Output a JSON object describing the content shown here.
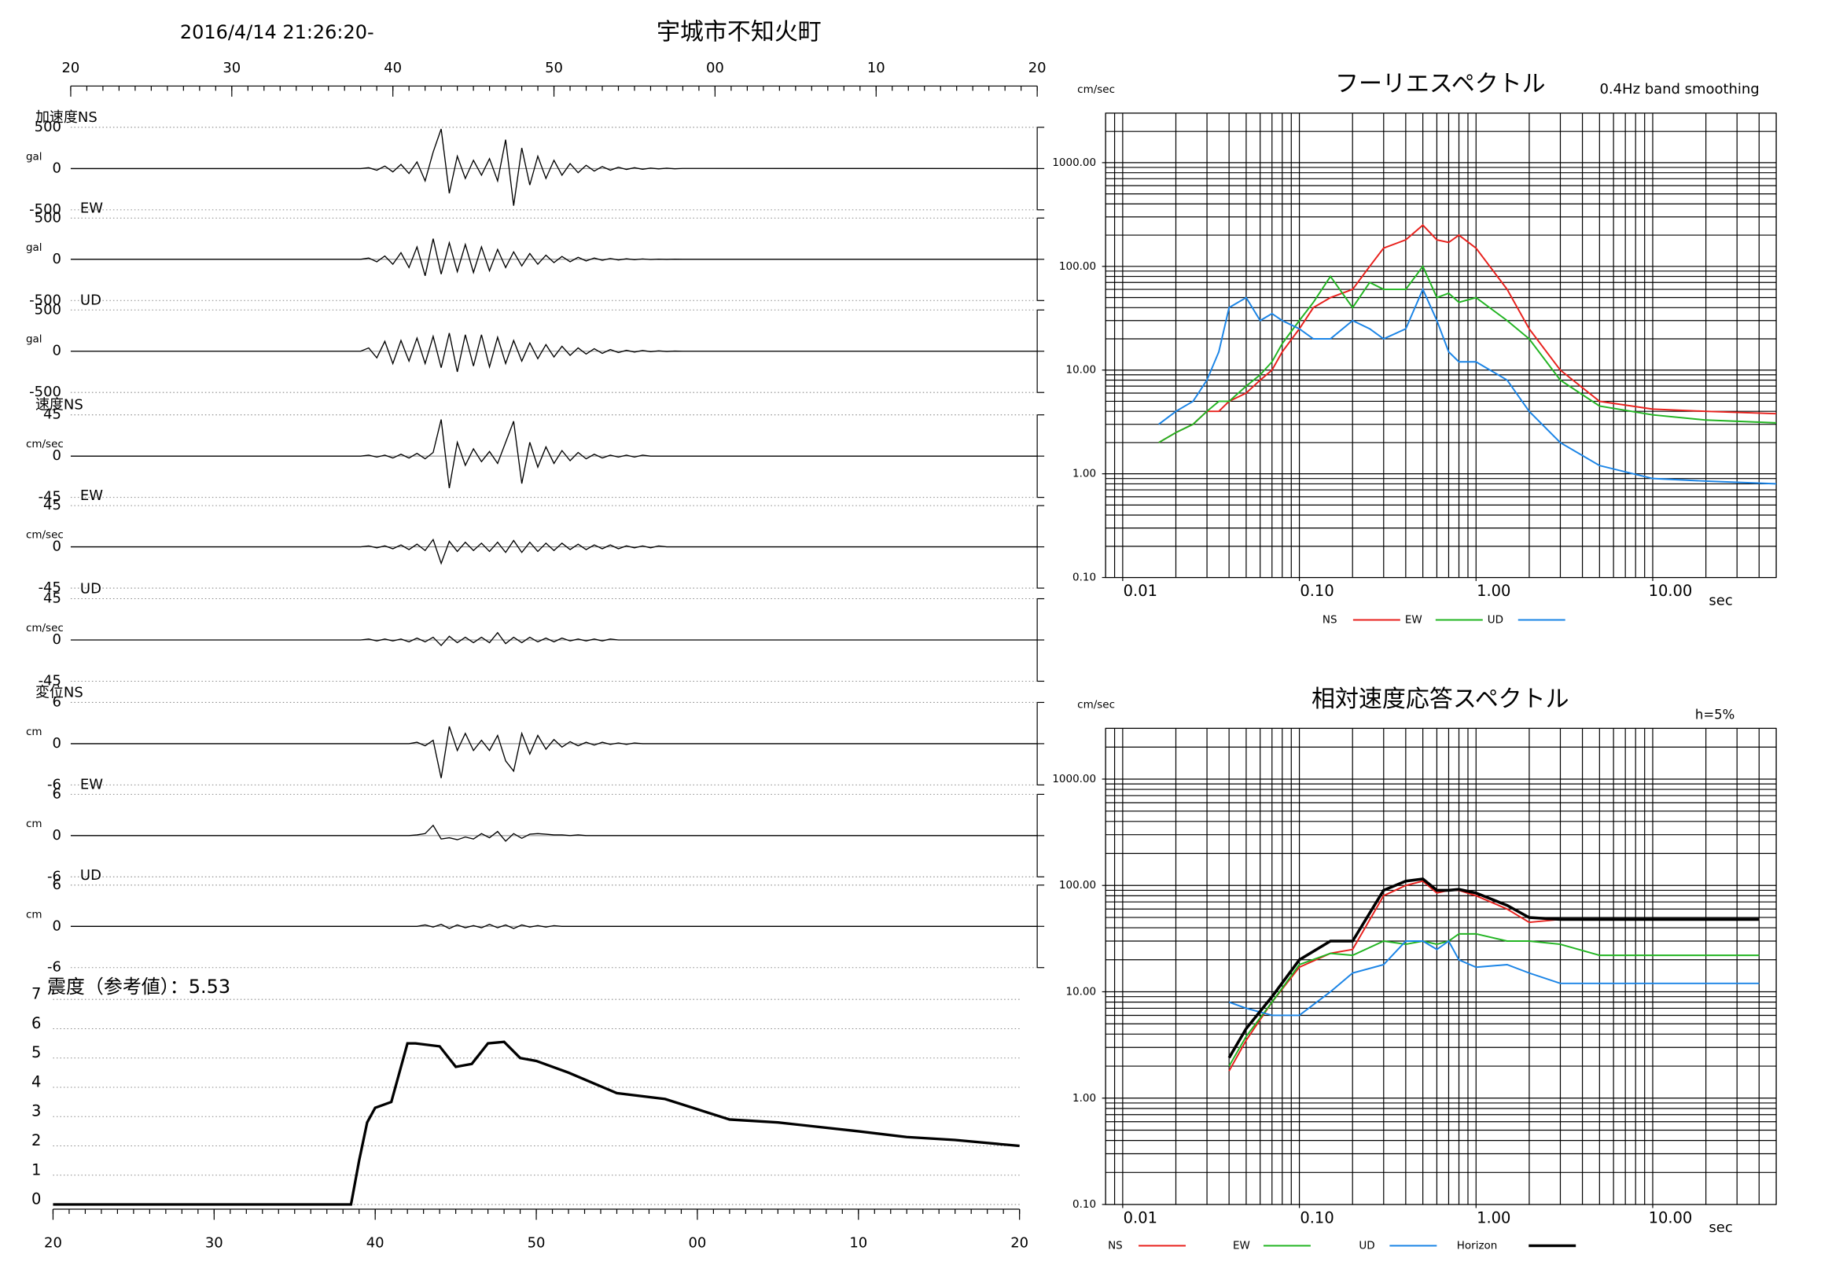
{
  "chart_data": [
    {
      "type": "waveform",
      "title": "宇城市不知火町",
      "subtitle": "2016/4/14 21:26:20-",
      "xlim": [
        20,
        80
      ],
      "xticks": [
        20,
        30,
        40,
        50,
        {
          "value": 60,
          "label": "00"
        },
        {
          "value": 70,
          "label": "10"
        },
        {
          "value": 80,
          "label": "20"
        }
      ],
      "x": [
        20,
        38,
        38.5,
        39,
        39.5,
        40,
        40.5,
        41,
        41.5,
        42,
        42.5,
        43,
        43.5,
        44,
        44.5,
        45,
        45.5,
        46,
        46.5,
        47,
        47.5,
        48,
        48.5,
        49,
        49.5,
        50,
        50.5,
        51,
        51.5,
        52,
        52.5,
        53,
        53.5,
        54,
        54.5,
        55,
        55.5,
        56,
        56.5,
        57,
        57.5,
        58,
        80
      ],
      "series": [
        {
          "name": "加速度NS",
          "unit": "gal",
          "color": "#000000",
          "ylim": [
            -500,
            500
          ],
          "yticks": [
            500,
            0,
            -500
          ],
          "values": [
            0,
            0,
            10,
            -20,
            30,
            -40,
            50,
            -60,
            80,
            -150,
            200,
            480,
            -300,
            150,
            -120,
            100,
            -80,
            120,
            -150,
            350,
            -450,
            250,
            -200,
            150,
            -120,
            100,
            -80,
            60,
            -50,
            40,
            -30,
            25,
            -20,
            15,
            -12,
            10,
            -8,
            6,
            -5,
            4,
            -3,
            2,
            0
          ]
        },
        {
          "name": "EW",
          "unit": "gal",
          "color": "#000000",
          "ylim": [
            -500,
            500
          ],
          "yticks": [
            500,
            0,
            -500
          ],
          "values": [
            0,
            0,
            15,
            -30,
            40,
            -60,
            80,
            -100,
            150,
            -200,
            250,
            -180,
            200,
            -150,
            180,
            -160,
            150,
            -140,
            120,
            -100,
            90,
            -80,
            70,
            -60,
            50,
            -40,
            35,
            -30,
            25,
            -20,
            15,
            -12,
            10,
            -8,
            6,
            -5,
            4,
            -3,
            2,
            -2,
            1,
            0,
            0
          ]
        },
        {
          "name": "UD",
          "unit": "gal",
          "color": "#000000",
          "ylim": [
            -500,
            500
          ],
          "yticks": [
            500,
            0,
            -500
          ],
          "values": [
            0,
            0,
            40,
            -80,
            120,
            -150,
            130,
            -120,
            160,
            -150,
            180,
            -200,
            220,
            -250,
            200,
            -180,
            200,
            -190,
            170,
            -150,
            130,
            -120,
            100,
            -90,
            80,
            -70,
            60,
            -50,
            40,
            -35,
            30,
            -25,
            20,
            -15,
            12,
            -10,
            8,
            -6,
            4,
            -3,
            2,
            0,
            0
          ]
        },
        {
          "name": "速度NS",
          "unit": "cm/sec",
          "color": "#000000",
          "ylim": [
            -45,
            45
          ],
          "yticks": [
            45,
            0,
            -45
          ],
          "values": [
            0,
            0,
            1,
            -1,
            1,
            -2,
            2,
            -2,
            3,
            -3,
            4,
            40,
            -35,
            15,
            -10,
            8,
            -6,
            5,
            -8,
            15,
            38,
            -30,
            15,
            -12,
            10,
            -8,
            6,
            -5,
            4,
            -3,
            2,
            -2,
            1,
            -1,
            1,
            -1,
            1,
            0,
            0,
            0,
            0,
            0,
            0
          ]
        },
        {
          "name": "EW",
          "unit": "cm/sec",
          "color": "#000000",
          "ylim": [
            -45,
            45
          ],
          "yticks": [
            45,
            0,
            -45
          ],
          "values": [
            0,
            0,
            1,
            -1,
            1,
            -2,
            2,
            -3,
            3,
            -4,
            8,
            -18,
            6,
            -5,
            5,
            -4,
            4,
            -5,
            5,
            -6,
            7,
            -6,
            5,
            -5,
            4,
            -4,
            4,
            -3,
            3,
            -3,
            2,
            -2,
            2,
            -2,
            1,
            -1,
            1,
            -1,
            1,
            0,
            0,
            0,
            0
          ]
        },
        {
          "name": "UD",
          "unit": "cm/sec",
          "color": "#000000",
          "ylim": [
            -45,
            45
          ],
          "yticks": [
            45,
            0,
            -45
          ],
          "values": [
            0,
            0,
            1,
            -1,
            1,
            -1,
            1,
            -2,
            2,
            -2,
            3,
            -6,
            4,
            -3,
            3,
            -3,
            3,
            -3,
            8,
            -4,
            3,
            -3,
            3,
            -2,
            2,
            -2,
            2,
            -1,
            1,
            -1,
            1,
            -1,
            1,
            0,
            0,
            0,
            0,
            0,
            0,
            0,
            0,
            0,
            0
          ]
        },
        {
          "name": "変位NS",
          "unit": "cm",
          "color": "#000000",
          "ylim": [
            -6,
            6
          ],
          "yticks": [
            6,
            0,
            -6
          ],
          "values": [
            0,
            0,
            0,
            0,
            0,
            0,
            0,
            0,
            0.2,
            -0.3,
            0.5,
            -5,
            2.5,
            -1,
            1.5,
            -1,
            0.5,
            -1,
            1.2,
            -2.5,
            -4,
            1.5,
            -1.5,
            1.2,
            -0.8,
            0.6,
            -0.5,
            0.3,
            -0.3,
            0.2,
            -0.2,
            0.2,
            -0.1,
            0.1,
            -0.1,
            0.1,
            0,
            0,
            0,
            0,
            0,
            0,
            0
          ]
        },
        {
          "name": "EW",
          "unit": "cm",
          "color": "#000000",
          "ylim": [
            -6,
            6
          ],
          "yticks": [
            6,
            0,
            -6
          ],
          "values": [
            0,
            0,
            0,
            0,
            0,
            0,
            0,
            0,
            0.1,
            0.3,
            1.5,
            -0.5,
            -0.3,
            -0.6,
            -0.2,
            -0.5,
            0.3,
            -0.3,
            0.6,
            -0.8,
            0.3,
            -0.4,
            0.2,
            0.3,
            0.2,
            0.1,
            0.1,
            0,
            0.1,
            0,
            0,
            0,
            0,
            0,
            0,
            0,
            0,
            0,
            0,
            0,
            0,
            0,
            0
          ]
        },
        {
          "name": "UD",
          "unit": "cm",
          "color": "#000000",
          "ylim": [
            -6,
            6
          ],
          "yticks": [
            6,
            0,
            -6
          ],
          "values": [
            0,
            0,
            0,
            0,
            0,
            0,
            0,
            0,
            0,
            0.2,
            -0.1,
            0.3,
            -0.3,
            0.2,
            -0.2,
            0.1,
            -0.2,
            0.3,
            -0.2,
            0.2,
            -0.3,
            0.2,
            -0.1,
            0.1,
            -0.1,
            0.1,
            0,
            0,
            0,
            0,
            0,
            0,
            0,
            0,
            0,
            0,
            0,
            0,
            0,
            0,
            0,
            0,
            0
          ]
        }
      ]
    },
    {
      "type": "line",
      "title": "震度（参考値）：5.53",
      "xlim": [
        20,
        80
      ],
      "xticks": [
        20,
        30,
        40,
        50,
        {
          "value": 60,
          "label": "00"
        },
        {
          "value": 70,
          "label": "10"
        },
        {
          "value": 80,
          "label": "20"
        }
      ],
      "ylim": [
        0,
        7
      ],
      "yticks": [
        0,
        1,
        2,
        3,
        4,
        5,
        6,
        7
      ],
      "grid": true,
      "x": [
        20,
        38.5,
        39,
        39.5,
        40,
        41,
        42,
        42.5,
        44,
        45,
        46,
        47,
        48,
        49,
        50,
        52,
        55,
        58,
        62,
        65,
        70,
        73,
        76,
        80
      ],
      "series": [
        {
          "color": "#000000",
          "values": [
            0,
            0,
            1.5,
            2.8,
            3.3,
            3.5,
            5.5,
            5.5,
            5.4,
            4.7,
            4.8,
            5.5,
            5.55,
            5.0,
            4.9,
            4.5,
            3.8,
            3.6,
            2.9,
            2.8,
            2.5,
            2.3,
            2.2,
            2.0
          ]
        }
      ]
    },
    {
      "type": "line",
      "title": "フーリエスペクトル",
      "subtitle": "0.4Hz band smoothing",
      "y_label": "cm/sec",
      "x_label": "sec",
      "log_x": true,
      "log_y": true,
      "grid": true,
      "xlim": [
        0.008,
        50
      ],
      "xticks": [
        0.01,
        {
          "value": 0.1,
          "label": "0.10"
        },
        {
          "value": 1,
          "label": "1.00"
        },
        {
          "value": 10,
          "label": "10.00"
        }
      ],
      "ylim": [
        0.1,
        3000
      ],
      "yticks": [
        {
          "value": 0.1,
          "label": "0.10"
        },
        {
          "value": 1,
          "label": "1.00"
        },
        {
          "value": 10,
          "label": "10.00"
        },
        {
          "value": 100,
          "label": "100.00"
        },
        {
          "value": 1000,
          "label": "1000.00"
        }
      ],
      "x": [
        0.016,
        0.02,
        0.025,
        0.03,
        0.035,
        0.04,
        0.05,
        0.06,
        0.07,
        0.08,
        0.1,
        0.12,
        0.15,
        0.2,
        0.25,
        0.3,
        0.4,
        0.5,
        0.6,
        0.7,
        0.8,
        1,
        1.5,
        2,
        3,
        5,
        10,
        20,
        50
      ],
      "series": [
        {
          "name": "NS",
          "color": "#e8201c",
          "values": [
            2,
            2.5,
            3,
            4,
            4,
            5,
            6,
            8,
            10,
            15,
            25,
            40,
            50,
            60,
            100,
            150,
            180,
            250,
            180,
            170,
            200,
            150,
            60,
            25,
            10,
            5,
            4.2,
            4,
            3.8
          ]
        },
        {
          "name": "EW",
          "color": "#22b422",
          "values": [
            2,
            2.5,
            3,
            4,
            5,
            5,
            7,
            9,
            12,
            18,
            30,
            45,
            80,
            40,
            70,
            60,
            60,
            100,
            50,
            55,
            45,
            50,
            30,
            20,
            8,
            4.5,
            3.7,
            3.3,
            3.1
          ]
        },
        {
          "name": "UD",
          "color": "#1a84e6",
          "values": [
            3,
            4,
            5,
            8,
            15,
            40,
            50,
            30,
            35,
            30,
            25,
            20,
            20,
            30,
            25,
            20,
            25,
            60,
            30,
            15,
            12,
            12,
            8,
            4,
            2,
            1.2,
            0.9,
            0.85,
            0.8
          ]
        }
      ]
    },
    {
      "type": "line",
      "title": "相対速度応答スペクトル",
      "subtitle": "h=5%",
      "y_label": "cm/sec",
      "x_label": "sec",
      "log_x": true,
      "log_y": true,
      "grid": true,
      "xlim": [
        0.008,
        50
      ],
      "xticks": [
        0.01,
        {
          "value": 0.1,
          "label": "0.10"
        },
        {
          "value": 1,
          "label": "1.00"
        },
        {
          "value": 10,
          "label": "10.00"
        }
      ],
      "ylim": [
        0.1,
        3000
      ],
      "yticks": [
        {
          "value": 0.1,
          "label": "0.10"
        },
        {
          "value": 1,
          "label": "1.00"
        },
        {
          "value": 10,
          "label": "10.00"
        },
        {
          "value": 100,
          "label": "100.00"
        },
        {
          "value": 1000,
          "label": "1000.00"
        }
      ],
      "x": [
        0.04,
        0.05,
        0.07,
        0.1,
        0.15,
        0.2,
        0.3,
        0.4,
        0.5,
        0.6,
        0.7,
        0.8,
        1,
        1.5,
        2,
        3,
        5,
        10,
        20,
        40
      ],
      "series": [
        {
          "name": "NS",
          "color": "#e8201c",
          "values": [
            1.8,
            3.5,
            8,
            17,
            23,
            25,
            80,
            100,
            110,
            85,
            90,
            90,
            80,
            60,
            45,
            48,
            48,
            48,
            48,
            48
          ]
        },
        {
          "name": "EW",
          "color": "#22b422",
          "values": [
            2,
            3.8,
            8,
            18,
            23,
            22,
            30,
            28,
            30,
            28,
            30,
            35,
            35,
            30,
            30,
            28,
            22,
            22,
            22,
            22
          ]
        },
        {
          "name": "UD",
          "color": "#1a84e6",
          "values": [
            8,
            7,
            6,
            6,
            10,
            15,
            18,
            30,
            30,
            25,
            30,
            20,
            17,
            18,
            15,
            12,
            12,
            12,
            12,
            12
          ]
        },
        {
          "name": "Horizon",
          "color": "#000000",
          "values": [
            2.4,
            4.5,
            9,
            20,
            30,
            30,
            90,
            110,
            115,
            90,
            90,
            92,
            85,
            65,
            50,
            48,
            48,
            48,
            48,
            48
          ]
        }
      ]
    }
  ]
}
